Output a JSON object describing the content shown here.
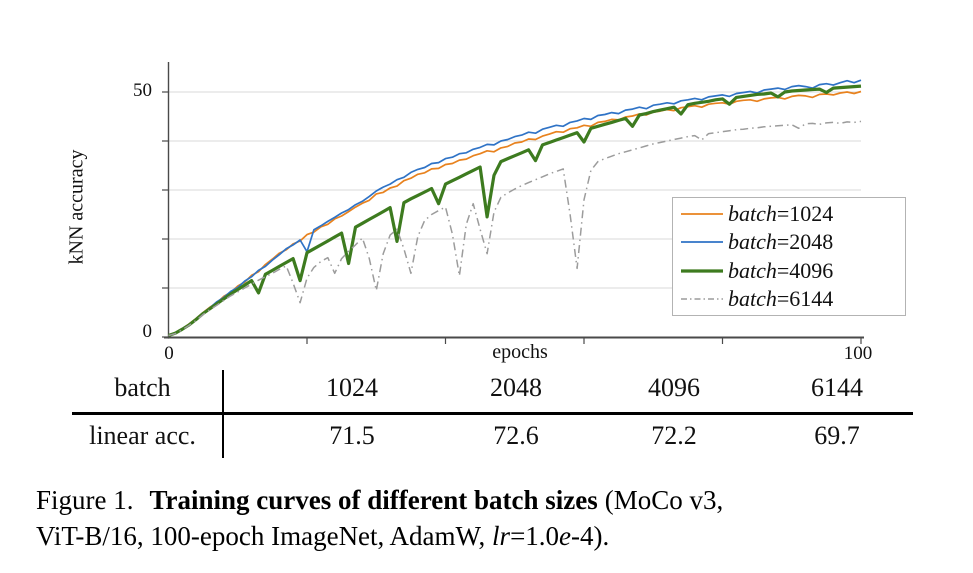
{
  "chart": {
    "ylabel": "kNN accuracy",
    "xlabel": "epochs",
    "y_tick_labels": {
      "top": "50",
      "bottom": "0"
    },
    "x_tick_labels": {
      "left": "0",
      "right": "100"
    }
  },
  "legend": {
    "items": [
      {
        "prefix": "batch",
        "suffix": "=1024"
      },
      {
        "prefix": "batch",
        "suffix": "=2048"
      },
      {
        "prefix": "batch",
        "suffix": "=4096"
      },
      {
        "prefix": "batch",
        "suffix": "=6144"
      }
    ]
  },
  "table": {
    "row1_label": "batch",
    "row1_values": [
      "1024",
      "2048",
      "4096",
      "6144"
    ],
    "row2_label": "linear acc.",
    "row2_values": [
      "71.5",
      "72.6",
      "72.2",
      "69.7"
    ]
  },
  "caption": {
    "prefix": "Figure 1.",
    "bold": "Training curves of different batch sizes",
    "after_bold": "(MoCo v3,",
    "line2_pre": "ViT-B/16, 100-epoch ImageNet, AdamW,",
    "lr_italic": "lr",
    "eq": "=1.0",
    "e_italic": "e",
    "tail": "-4)."
  },
  "chart_data": {
    "type": "line",
    "title": "",
    "xlabel": "epochs",
    "ylabel": "kNN accuracy",
    "xlim": [
      0,
      100
    ],
    "ylim": [
      0,
      56
    ],
    "x_ticks": [
      0,
      20,
      40,
      60,
      80,
      100
    ],
    "y_ticks": [
      0,
      10,
      20,
      30,
      40,
      50
    ],
    "shown_x_tick_labels": [
      "0",
      "100"
    ],
    "shown_y_tick_labels": [
      "0",
      "50"
    ],
    "grid": "horizontal",
    "grid_color": "#d9d9d9",
    "axis_color": "#4a4a4a",
    "legend_position": "lower right",
    "x_start": 0,
    "x_step": 1,
    "series": [
      {
        "name": "batch=1024",
        "color": "#e8821e",
        "style": "solid",
        "width": 1.7,
        "values": [
          0.3,
          0.9,
          1.7,
          2.7,
          3.8,
          5.0,
          6.1,
          7.0,
          8.3,
          9.1,
          10.4,
          11.2,
          12.6,
          13.3,
          14.8,
          15.9,
          17.1,
          17.8,
          19.0,
          19.6,
          20.9,
          21.4,
          22.5,
          23.0,
          24.1,
          24.7,
          25.6,
          26.5,
          27.3,
          27.9,
          29.2,
          29.5,
          30.4,
          30.8,
          31.9,
          32.4,
          33.2,
          33.5,
          34.3,
          34.4,
          35.2,
          35.4,
          36.1,
          36.3,
          37.0,
          37.4,
          38.0,
          37.8,
          38.6,
          38.9,
          39.6,
          39.8,
          40.4,
          40.3,
          41.0,
          41.4,
          41.9,
          41.8,
          42.5,
          42.7,
          43.2,
          43.0,
          43.8,
          44.0,
          44.4,
          44.3,
          44.9,
          45.1,
          45.5,
          45.3,
          45.9,
          46.1,
          46.4,
          46.2,
          46.8,
          47.0,
          47.2,
          46.9,
          47.5,
          47.7,
          47.8,
          47.5,
          48.1,
          48.3,
          48.4,
          48.1,
          48.6,
          48.8,
          48.9,
          48.6,
          49.1,
          49.3,
          49.2,
          48.9,
          49.5,
          49.6,
          49.4,
          49.8,
          50.0,
          49.7,
          50.1
        ]
      },
      {
        "name": "batch=2048",
        "color": "#2f73c6",
        "style": "solid",
        "width": 1.7,
        "values": [
          0.3,
          0.8,
          1.6,
          2.6,
          3.7,
          4.9,
          6.0,
          7.2,
          8.1,
          9.3,
          10.1,
          11.4,
          12.3,
          13.6,
          14.4,
          15.7,
          16.8,
          18.0,
          18.8,
          19.8,
          17.4,
          21.9,
          22.7,
          23.6,
          24.4,
          25.3,
          26.0,
          27.0,
          27.7,
          28.7,
          29.8,
          30.6,
          31.2,
          32.1,
          32.6,
          33.6,
          34.2,
          34.6,
          35.4,
          35.6,
          36.4,
          36.7,
          37.4,
          37.6,
          38.3,
          38.7,
          39.3,
          39.2,
          40.0,
          40.3,
          40.9,
          41.2,
          41.8,
          41.6,
          42.4,
          42.8,
          43.2,
          43.0,
          43.8,
          44.1,
          44.6,
          44.4,
          45.2,
          45.4,
          45.8,
          45.6,
          46.3,
          46.5,
          46.9,
          46.6,
          47.3,
          47.5,
          47.8,
          47.6,
          48.2,
          48.4,
          48.7,
          48.4,
          49.0,
          49.2,
          49.4,
          49.1,
          49.7,
          49.9,
          50.1,
          49.8,
          50.4,
          50.6,
          50.8,
          50.5,
          51.1,
          51.3,
          51.1,
          50.8,
          51.5,
          51.7,
          51.4,
          51.9,
          52.3,
          51.9,
          52.4
        ]
      },
      {
        "name": "batch=4096",
        "color": "#3d7b1f",
        "style": "solid",
        "width": 3.2,
        "values": [
          0.3,
          0.8,
          1.6,
          2.5,
          3.6,
          4.8,
          5.8,
          6.8,
          7.8,
          8.8,
          9.7,
          10.6,
          11.5,
          9.0,
          12.8,
          13.6,
          14.4,
          15.2,
          16.0,
          11.5,
          17.2,
          18.0,
          18.8,
          19.6,
          20.4,
          21.2,
          15.0,
          22.4,
          23.2,
          24.0,
          24.8,
          25.6,
          26.4,
          19.5,
          27.4,
          28.2,
          28.9,
          29.6,
          30.3,
          27.2,
          31.2,
          31.9,
          32.6,
          33.3,
          34.0,
          34.7,
          24.5,
          33.0,
          35.8,
          36.4,
          37.0,
          37.6,
          38.2,
          36.0,
          39.2,
          39.7,
          40.2,
          40.7,
          41.2,
          41.7,
          39.8,
          42.6,
          43.0,
          43.4,
          43.8,
          44.2,
          44.6,
          43.0,
          45.3,
          45.6,
          46.0,
          46.3,
          46.6,
          46.9,
          45.5,
          47.4,
          47.7,
          47.9,
          48.1,
          48.4,
          48.6,
          47.5,
          48.9,
          49.1,
          49.3,
          49.5,
          49.6,
          49.8,
          49.0,
          50.0,
          50.2,
          50.3,
          50.4,
          50.5,
          50.6,
          49.9,
          50.8,
          50.9,
          51.0,
          51.1,
          51.2
        ]
      },
      {
        "name": "batch=6144",
        "color": "#9c9c9c",
        "style": "dashdot",
        "width": 1.5,
        "values": [
          0.3,
          0.7,
          1.5,
          2.4,
          3.4,
          4.6,
          5.6,
          6.5,
          7.5,
          8.4,
          9.2,
          10.0,
          10.8,
          11.6,
          12.3,
          13.0,
          13.8,
          14.5,
          11.0,
          7.0,
          12.0,
          14.2,
          15.4,
          16.2,
          13.0,
          16.0,
          17.5,
          18.8,
          20.2,
          16.0,
          9.5,
          17.0,
          20.8,
          22.0,
          18.0,
          13.0,
          20.5,
          23.8,
          25.0,
          25.8,
          26.5,
          21.0,
          12.5,
          23.0,
          27.2,
          22.0,
          17.0,
          25.5,
          28.5,
          29.4,
          30.2,
          30.9,
          31.5,
          32.1,
          32.7,
          33.3,
          33.8,
          34.3,
          25.0,
          14.0,
          28.0,
          34.0,
          35.8,
          36.4,
          36.9,
          37.4,
          37.8,
          38.2,
          38.6,
          39.0,
          39.4,
          39.7,
          40.0,
          40.3,
          40.6,
          40.9,
          41.1,
          40.2,
          41.5,
          41.7,
          41.9,
          42.1,
          42.3,
          42.4,
          42.6,
          42.7,
          42.9,
          43.0,
          43.1,
          43.2,
          43.3,
          42.6,
          43.5,
          43.6,
          43.4,
          43.7,
          43.8,
          43.6,
          43.9,
          43.8,
          44.0
        ]
      }
    ],
    "annotation_table": {
      "batch": [
        1024,
        2048,
        4096,
        6144
      ],
      "linear_acc": [
        71.5,
        72.6,
        72.2,
        69.7
      ]
    }
  }
}
